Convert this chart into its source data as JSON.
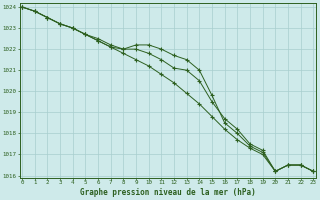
{
  "title": "Graphe pression niveau de la mer (hPa)",
  "bg_color": "#ceeaea",
  "grid_color": "#a8cece",
  "line_color": "#2d6020",
  "x_min": 0,
  "x_max": 23,
  "y_min": 1016,
  "y_max": 1024,
  "line1": [
    1024.0,
    1023.8,
    1023.5,
    1023.2,
    1023.0,
    1022.7,
    1022.4,
    1022.1,
    1021.8,
    1021.5,
    1021.2,
    1020.8,
    1020.4,
    1019.9,
    1019.4,
    1018.8,
    1018.2,
    1017.7,
    1017.3,
    1017.0,
    1016.2,
    1016.5,
    1016.5,
    1016.2
  ],
  "line2": [
    1024.0,
    1023.8,
    1023.5,
    1023.2,
    1023.0,
    1022.7,
    1022.4,
    1022.1,
    1022.0,
    1022.0,
    1021.8,
    1021.5,
    1021.1,
    1021.0,
    1020.5,
    1019.5,
    1018.7,
    1018.2,
    1017.5,
    1017.2,
    1016.2,
    1016.5,
    1016.5,
    1016.2
  ],
  "line3": [
    1024.0,
    1023.8,
    1023.5,
    1023.2,
    1023.0,
    1022.7,
    1022.5,
    1022.2,
    1022.0,
    1022.2,
    1022.2,
    1022.0,
    1021.7,
    1021.5,
    1021.0,
    1019.8,
    1018.5,
    1018.0,
    1017.4,
    1017.1,
    1016.2,
    1016.5,
    1016.5,
    1016.2
  ]
}
